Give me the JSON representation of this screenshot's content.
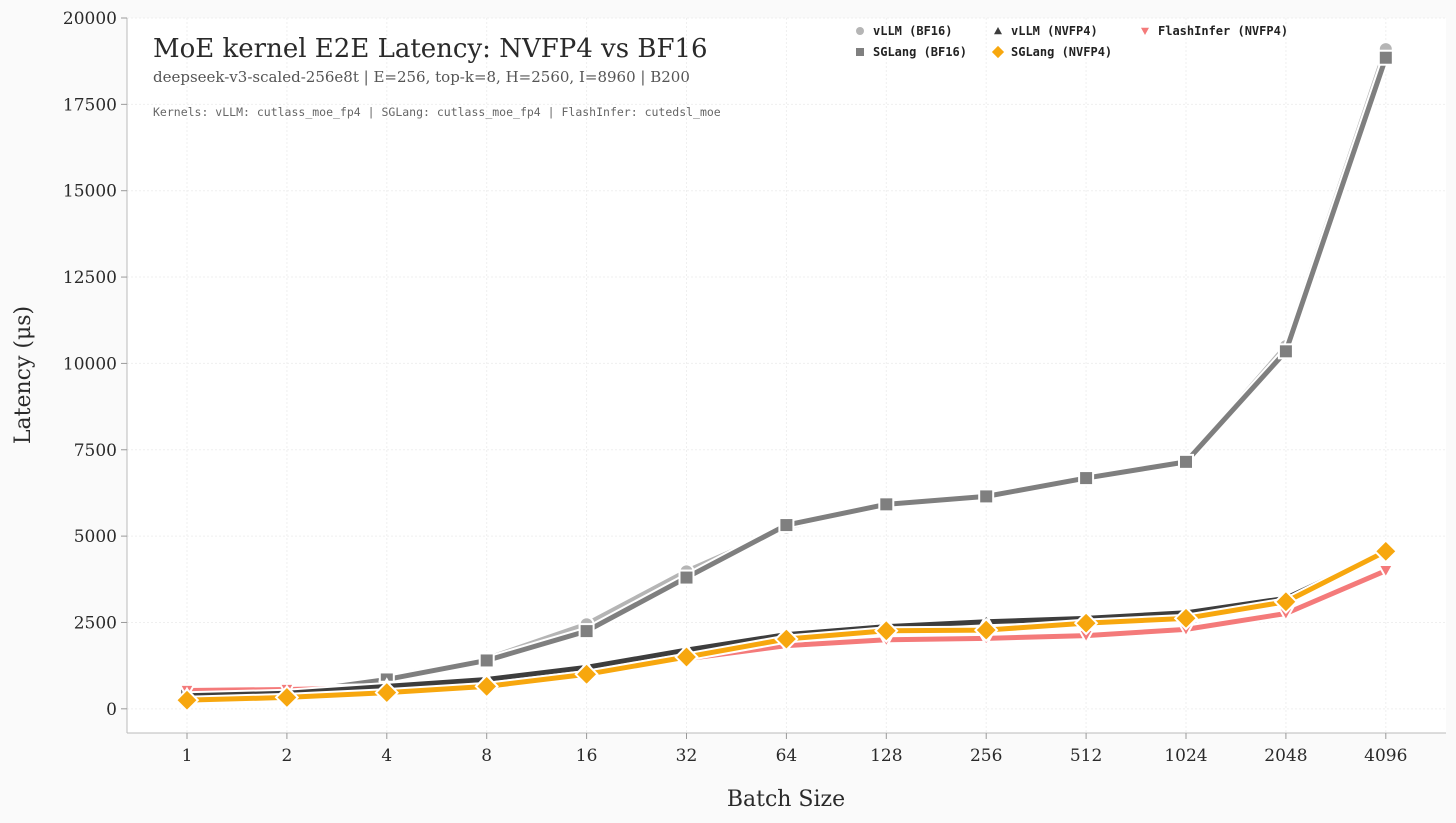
{
  "chart_data": {
    "type": "line",
    "title": "MoE kernel E2E Latency: NVFP4 vs BF16",
    "subtitle": "deepseek-v3-scaled-256e8t | E=256, top-k=8, H=2560, I=8960 | B200",
    "note": "Kernels: vLLM: cutlass_moe_fp4 | SGLang: cutlass_moe_fp4 | FlashInfer: cutedsl_moe",
    "xlabel": "Batch Size",
    "ylabel": "Latency (μs)",
    "categories": [
      "1",
      "2",
      "4",
      "8",
      "16",
      "32",
      "64",
      "128",
      "256",
      "512",
      "1024",
      "2048",
      "4096"
    ],
    "ylim": [
      -700,
      20000
    ],
    "yticks": [
      0,
      2500,
      5000,
      7500,
      10000,
      12500,
      15000,
      17500,
      20000
    ],
    "grid": true,
    "legend_position": "top-right",
    "series": [
      {
        "name": "vLLM (BF16)",
        "marker": "circle",
        "color": "#b5b5b5",
        "values": [
          400,
          480,
          900,
          1450,
          2450,
          3980,
          5250,
          5920,
          6150,
          6680,
          7150,
          10500,
          19100
        ]
      },
      {
        "name": "SGLang (BF16)",
        "marker": "square",
        "color": "#7f7f7f",
        "values": [
          380,
          450,
          850,
          1400,
          2250,
          3800,
          5320,
          5920,
          6150,
          6680,
          7150,
          10350,
          18850
        ]
      },
      {
        "name": "vLLM (NVFP4)",
        "marker": "triangle",
        "color": "#3d3d3d",
        "values": [
          380,
          450,
          650,
          850,
          1200,
          1700,
          2150,
          2380,
          2520,
          2620,
          2780,
          3200,
          4550
        ]
      },
      {
        "name": "SGLang (NVFP4)",
        "marker": "diamond",
        "color": "#f7a70e",
        "values": [
          250,
          330,
          470,
          650,
          1000,
          1500,
          2020,
          2260,
          2280,
          2480,
          2620,
          3100,
          4560
        ]
      },
      {
        "name": "FlashInfer (NVFP4)",
        "marker": "triangle-down",
        "color": "#f47a7a",
        "values": [
          530,
          560,
          620,
          780,
          1050,
          1450,
          1830,
          2000,
          2040,
          2120,
          2300,
          2760,
          4000
        ]
      }
    ]
  }
}
